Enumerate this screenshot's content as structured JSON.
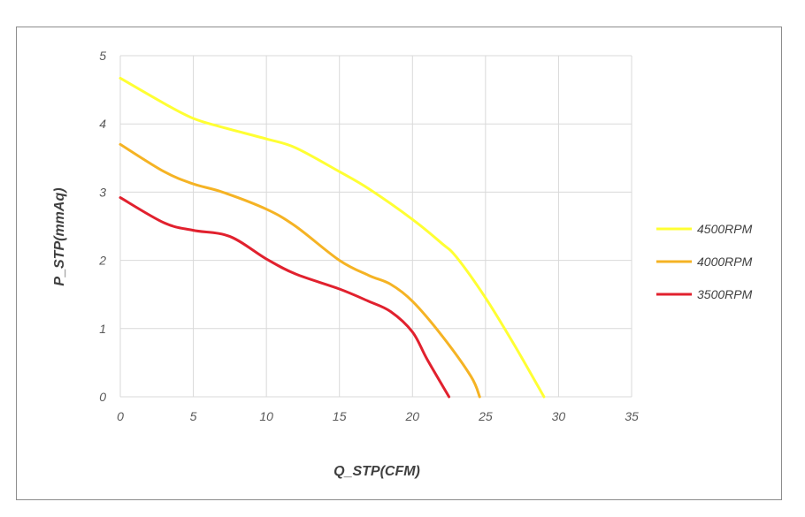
{
  "chart_data": {
    "type": "line",
    "title": "",
    "xlabel": "Q_STP(CFM)",
    "ylabel": "P_STP(mmAq)",
    "xlim": [
      0,
      35
    ],
    "ylim": [
      0,
      5
    ],
    "xticks": [
      0,
      5,
      10,
      15,
      20,
      25,
      30,
      35
    ],
    "yticks": [
      0,
      1,
      2,
      3,
      4,
      5
    ],
    "grid": true,
    "legend_position": "right",
    "series": [
      {
        "name": "4500RPM",
        "color": "#ffff33",
        "points": [
          [
            0,
            4.67
          ],
          [
            3,
            4.3
          ],
          [
            5,
            4.08
          ],
          [
            7,
            3.95
          ],
          [
            10,
            3.78
          ],
          [
            12,
            3.65
          ],
          [
            15,
            3.3
          ],
          [
            17,
            3.05
          ],
          [
            20,
            2.6
          ],
          [
            22,
            2.25
          ],
          [
            23,
            2.05
          ],
          [
            25,
            1.45
          ],
          [
            27,
            0.75
          ],
          [
            29,
            0.0
          ]
        ]
      },
      {
        "name": "4000RPM",
        "color": "#f5b324",
        "points": [
          [
            0,
            3.7
          ],
          [
            3,
            3.3
          ],
          [
            5,
            3.12
          ],
          [
            7,
            3.0
          ],
          [
            10,
            2.75
          ],
          [
            12,
            2.5
          ],
          [
            15,
            2.0
          ],
          [
            17,
            1.78
          ],
          [
            18.5,
            1.65
          ],
          [
            20,
            1.4
          ],
          [
            22,
            0.9
          ],
          [
            24,
            0.3
          ],
          [
            24.6,
            0.0
          ]
        ]
      },
      {
        "name": "3500RPM",
        "color": "#e1212e",
        "points": [
          [
            0,
            2.92
          ],
          [
            3,
            2.55
          ],
          [
            5,
            2.44
          ],
          [
            7.5,
            2.35
          ],
          [
            10,
            2.02
          ],
          [
            12,
            1.8
          ],
          [
            15,
            1.58
          ],
          [
            17,
            1.4
          ],
          [
            18.5,
            1.25
          ],
          [
            20,
            0.95
          ],
          [
            21,
            0.55
          ],
          [
            22.5,
            0.0
          ]
        ]
      }
    ]
  }
}
